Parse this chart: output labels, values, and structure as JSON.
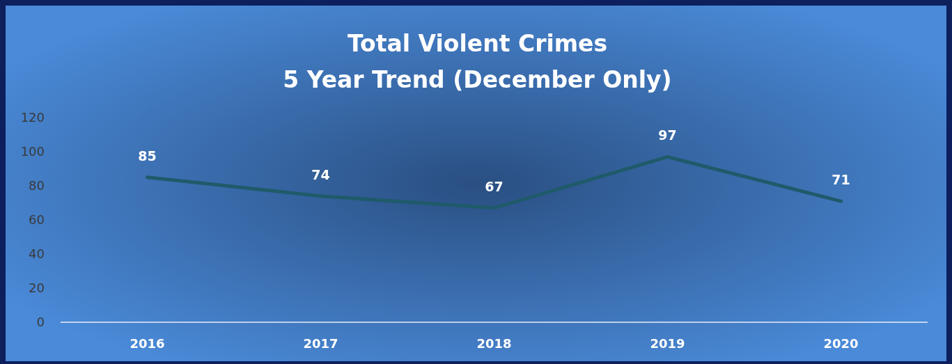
{
  "chart_data": {
    "type": "line",
    "title": "Total Violent Crimes\n5 Year Trend (December Only)",
    "categories": [
      "2016",
      "2017",
      "2018",
      "2019",
      "2020"
    ],
    "series": [
      {
        "color": "#1f5a6a",
        "values": [
          85,
          74,
          67,
          97,
          71
        ]
      }
    ],
    "ylim": [
      0,
      120
    ],
    "yticks": [
      0,
      20,
      40,
      60,
      80,
      100,
      120
    ],
    "grid": false,
    "data_labels": true,
    "marker": "none",
    "line_style": "solid"
  }
}
